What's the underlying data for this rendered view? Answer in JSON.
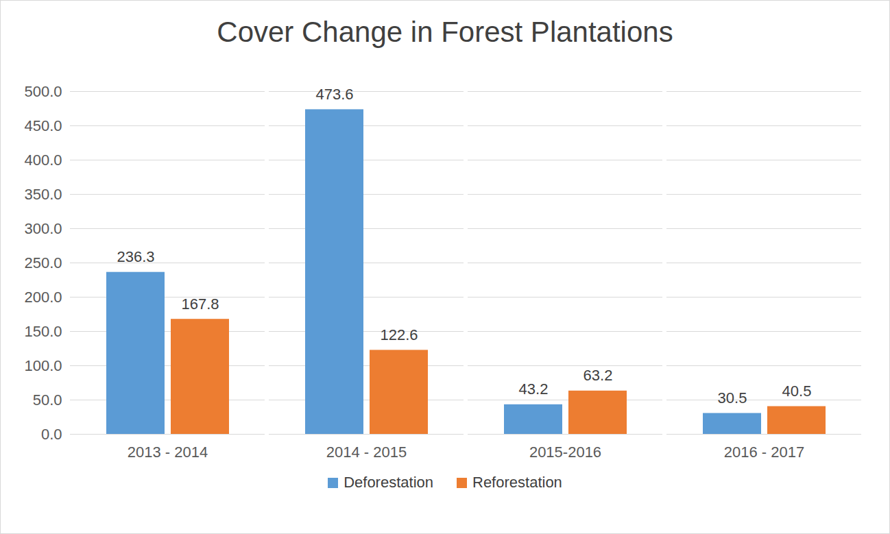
{
  "chart_data": {
    "type": "bar",
    "title": "Cover Change in Forest Plantations",
    "categories": [
      "2013 - 2014",
      "2014 - 2015",
      "2015-2016",
      "2016 - 2017"
    ],
    "series": [
      {
        "name": "Deforestation",
        "color": "#5b9bd5",
        "values": [
          236.3,
          473.6,
          43.2,
          30.5
        ]
      },
      {
        "name": "Reforestation",
        "color": "#ed7d31",
        "values": [
          167.8,
          122.6,
          63.2,
          40.5
        ]
      }
    ],
    "ylim": [
      0,
      500
    ],
    "yticks": [
      {
        "value": 0,
        "label": "0.0"
      },
      {
        "value": 50,
        "label": "50.0"
      },
      {
        "value": 100,
        "label": "100.0"
      },
      {
        "value": 150,
        "label": "150.0"
      },
      {
        "value": 200,
        "label": "200.0"
      },
      {
        "value": 250,
        "label": "250.0"
      },
      {
        "value": 300,
        "label": "300.0"
      },
      {
        "value": 350,
        "label": "350.0"
      },
      {
        "value": 400,
        "label": "400.0"
      },
      {
        "value": 450,
        "label": "450.0"
      },
      {
        "value": 500,
        "label": "500.0"
      }
    ],
    "grid": true,
    "data_labels": true,
    "legend": "bottom"
  }
}
